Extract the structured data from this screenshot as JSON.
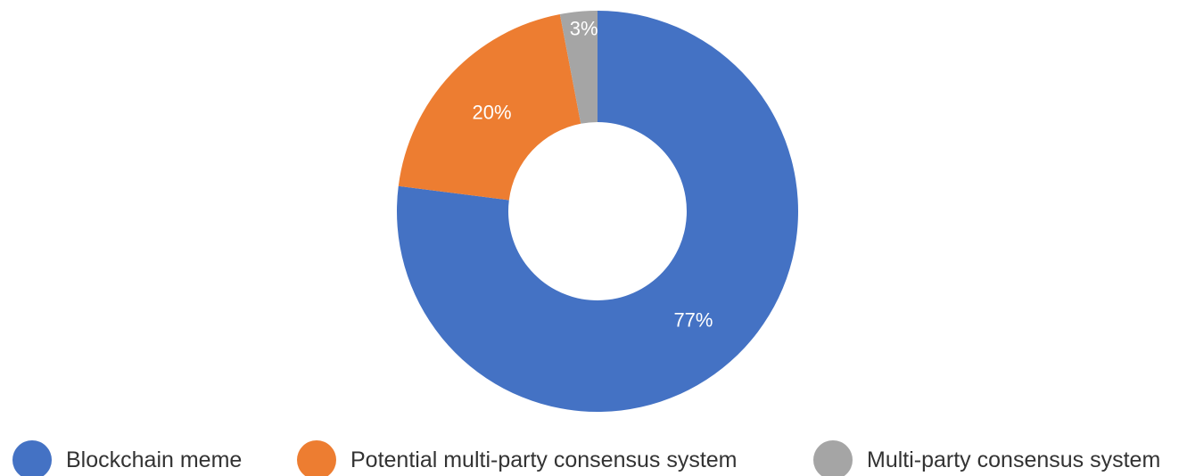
{
  "chart_data": {
    "type": "pie",
    "donut": true,
    "legend_position": "bottom",
    "slices": [
      {
        "name": "Blockchain meme",
        "value": 77,
        "label": "77%",
        "color": "#4472C4"
      },
      {
        "name": "Potential multi-party consensus system",
        "value": 20,
        "label": "20%",
        "color": "#ED7D31"
      },
      {
        "name": "Multi-party consensus system",
        "value": 3,
        "label": "3%",
        "color": "#A5A5A5"
      }
    ]
  }
}
